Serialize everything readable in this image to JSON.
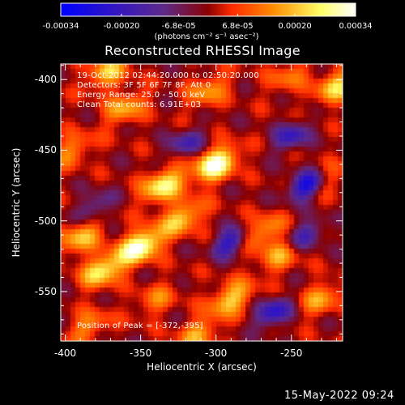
{
  "colorbar": {
    "min": -0.00034,
    "max": 0.00034,
    "labels": [
      "-0.00034",
      "-0.00020",
      "-6.8e-05",
      "6.8e-05",
      "0.00020",
      "0.00034"
    ],
    "label_values": [
      -0.00034,
      -0.0002,
      -6.8e-05,
      6.8e-05,
      0.0002,
      0.00034
    ],
    "unit_text": "(photons cm⁻² s⁻¹ asec⁻²)",
    "colors": [
      "#0000ff",
      "#5e2a8a",
      "#8b0000",
      "#ff2a00",
      "#ff8c00",
      "#ffff66",
      "#ffffff"
    ]
  },
  "title": "Reconstructed RHESSI Image",
  "annotations": {
    "line1": "19-Oct-2012 02:44:20.000 to 02:50:20.000",
    "line2": "Detectors: 3F 5F 6F 7F 8F, Att 0",
    "line3": "Energy Range: 25.0 - 50.0 keV",
    "line4": "Clean     Total counts: 6.91E+03",
    "peak": "Position of Peak = [-372,-395]"
  },
  "timestamp": "15-May-2022 09:24",
  "chart_data": {
    "type": "heatmap",
    "title": "Reconstructed RHESSI Image",
    "xlabel": "Heliocentric X (arcsec)",
    "ylabel": "Heliocentric Y (arcsec)",
    "xlim": [
      -403,
      -216
    ],
    "ylim": [
      -585,
      -389
    ],
    "x_ticks": [
      -400,
      -350,
      -300,
      -250
    ],
    "x_tick_labels": [
      "-400",
      "-350",
      "-300",
      "-250"
    ],
    "y_ticks": [
      -550,
      -500,
      -450,
      -400
    ],
    "y_tick_labels": [
      "-550",
      "-500",
      "-450",
      "-400"
    ],
    "peak_position": [
      -372,
      -395
    ],
    "blobs": [
      {
        "x": -372,
        "y": -395,
        "a": 0.0002
      },
      {
        "x": -360,
        "y": -420,
        "a": 0.00018
      },
      {
        "x": -305,
        "y": -408,
        "a": 0.00016
      },
      {
        "x": -300,
        "y": -460,
        "a": 0.00034
      },
      {
        "x": -335,
        "y": -475,
        "a": 0.00028
      },
      {
        "x": -322,
        "y": -498,
        "a": 0.00022
      },
      {
        "x": -350,
        "y": -518,
        "a": 0.00034
      },
      {
        "x": -375,
        "y": -535,
        "a": 0.00026
      },
      {
        "x": -390,
        "y": -512,
        "a": 0.0002
      },
      {
        "x": -395,
        "y": -450,
        "a": 0.00014
      },
      {
        "x": -270,
        "y": -508,
        "a": 0.00018
      },
      {
        "x": -258,
        "y": -525,
        "a": 0.00016
      },
      {
        "x": -290,
        "y": -555,
        "a": 0.00022
      },
      {
        "x": -230,
        "y": -555,
        "a": 0.00016
      },
      {
        "x": -312,
        "y": -580,
        "a": 0.00016
      },
      {
        "x": -220,
        "y": -405,
        "a": 0.00022
      },
      {
        "x": -252,
        "y": -398,
        "a": 0.00012
      },
      {
        "x": -385,
        "y": -575,
        "a": 0.00014
      },
      {
        "x": -225,
        "y": -470,
        "a": 0.0001
      },
      {
        "x": -340,
        "y": -556,
        "a": 0.00012
      }
    ],
    "negative_blobs": [
      {
        "x": -240,
        "y": -475,
        "a": 0.0003
      },
      {
        "x": -290,
        "y": -515,
        "a": 0.00024
      },
      {
        "x": -250,
        "y": -440,
        "a": 0.0002
      },
      {
        "x": -262,
        "y": -565,
        "a": 0.00024
      },
      {
        "x": -320,
        "y": -445,
        "a": 0.00016
      },
      {
        "x": -380,
        "y": -490,
        "a": 0.00014
      },
      {
        "x": -240,
        "y": -510,
        "a": 0.00018
      }
    ]
  }
}
